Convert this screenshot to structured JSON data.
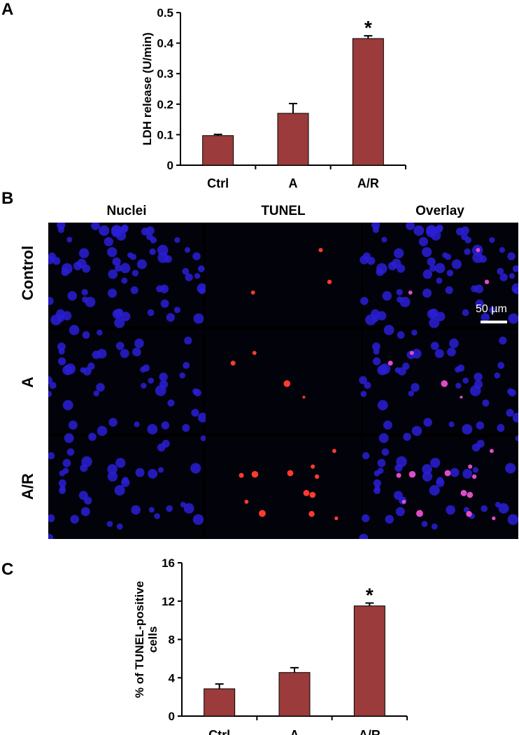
{
  "panels": {
    "a": "A",
    "b": "B",
    "c": "C"
  },
  "chart_data": [
    {
      "type": "bar",
      "categories": [
        "Ctrl",
        "A",
        "A/R"
      ],
      "values": [
        0.097,
        0.17,
        0.415
      ],
      "errors": [
        0.004,
        0.032,
        0.009
      ],
      "significance": [
        "",
        "",
        "*"
      ],
      "xlabel": "",
      "ylabel": "LDH release (U/min)",
      "ylim": [
        0,
        0.5
      ],
      "yticks": [
        "0",
        "0.1",
        "0.2",
        "0.3",
        "0.4",
        "0.5"
      ],
      "bar_color": "#9b3b3b",
      "grid": false
    },
    {
      "type": "bar",
      "categories": [
        "Ctrl",
        "A",
        "A/R"
      ],
      "values": [
        2.85,
        4.55,
        11.5
      ],
      "errors": [
        0.5,
        0.5,
        0.3
      ],
      "significance": [
        "",
        "",
        "*"
      ],
      "xlabel": "",
      "ylabel": "% of TUNEL-positive cells",
      "ylim": [
        0,
        16
      ],
      "yticks": [
        "0",
        "4",
        "8",
        "12",
        "16"
      ],
      "bar_color": "#9b3b3b",
      "grid": false
    }
  ],
  "microscopy": {
    "columns": [
      "Nuclei",
      "TUNEL",
      "Overlay"
    ],
    "rows": [
      "Control",
      "A",
      "A/R"
    ],
    "scale_bar": "50 µm"
  }
}
